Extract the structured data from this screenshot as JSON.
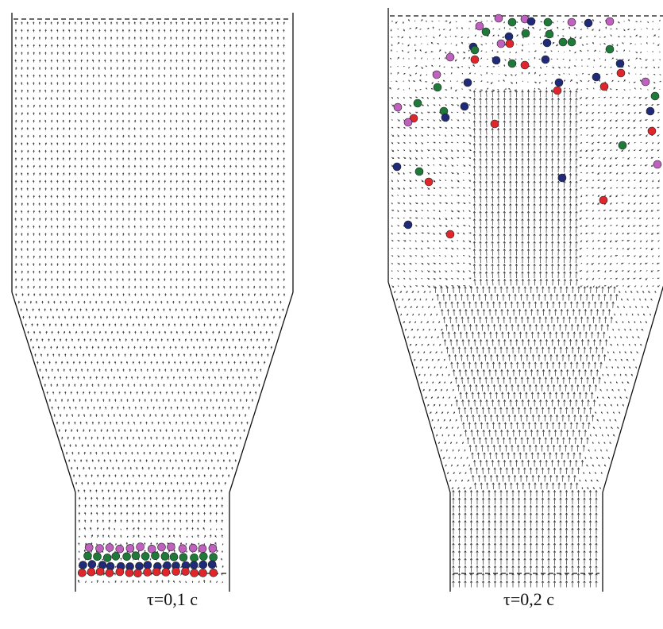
{
  "panels": [
    {
      "caption": "τ=0,1 c"
    },
    {
      "caption": "τ=0,2 c"
    }
  ],
  "particle_colors": {
    "red": "#e0262b",
    "navy": "#1f2a78",
    "green": "#1f7a3a",
    "magenta": "#c061c0"
  },
  "wall_color": "#111111",
  "vector_color": "#333333"
}
